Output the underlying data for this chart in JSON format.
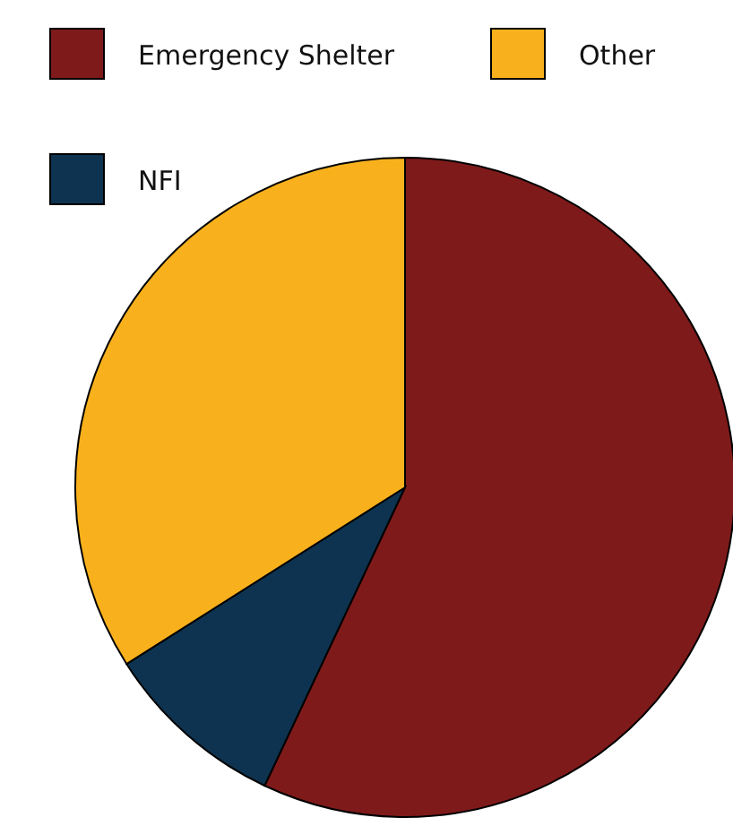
{
  "chart_data": {
    "type": "pie",
    "categories": [
      "Emergency Shelter",
      "NFI",
      "Other"
    ],
    "values": [
      57,
      9,
      34
    ],
    "colors": [
      "#7f1a1b",
      "#0e3350",
      "#f8b11c"
    ],
    "legend": "top"
  }
}
